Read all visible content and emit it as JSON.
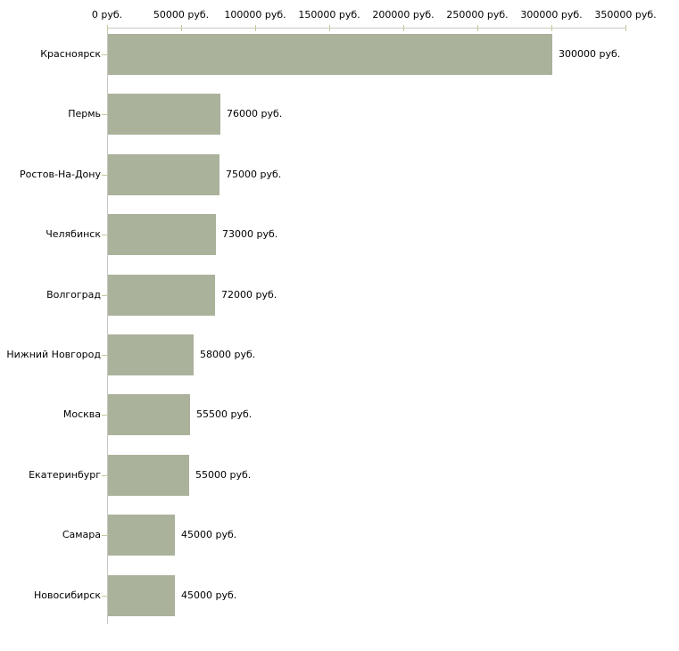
{
  "page": {
    "background": "#ffffff"
  },
  "chart_data": {
    "type": "bar",
    "orientation": "horizontal",
    "title": "",
    "xlabel": "",
    "ylabel": "",
    "xlim": [
      0,
      350000
    ],
    "grid": false,
    "legend": false,
    "unit": "руб.",
    "categories": [
      "Красноярск",
      "Пермь",
      "Ростов-На-Дону",
      "Челябинск",
      "Волгоград",
      "Нижний Новгород",
      "Москва",
      "Екатеринбург",
      "Самара",
      "Новосибирск"
    ],
    "values": [
      300000,
      76000,
      75000,
      73000,
      72000,
      58000,
      55500,
      55000,
      45000,
      45000
    ],
    "value_labels": [
      "300000 руб.",
      "76000 руб.",
      "75000 руб.",
      "73000 руб.",
      "72000 руб.",
      "58000 руб.",
      "55500 руб.",
      "55000 руб.",
      "45000 руб.",
      "45000 руб."
    ],
    "x_tick_values": [
      0,
      50000,
      100000,
      150000,
      200000,
      250000,
      300000,
      350000
    ],
    "x_tick_labels": [
      "0 руб.",
      "50000 руб.",
      "100000 руб.",
      "150000 руб.",
      "200000 руб.",
      "250000 руб.",
      "300000 руб.",
      "350000 руб."
    ],
    "colors": {
      "bar": "#abb29b",
      "axis_line": "#c8c8c2",
      "tick": "#c6c69c",
      "text": "#000000",
      "background": "#ffffff"
    }
  }
}
